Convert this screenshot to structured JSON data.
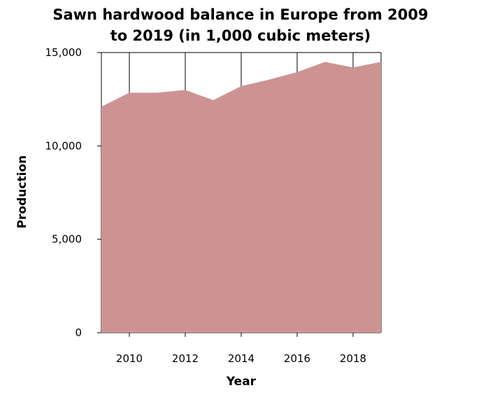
{
  "chart_data": {
    "type": "area",
    "title_lines": [
      "Sawn hardwood balance in Europe from 2009",
      "to 2019 (in 1,000 cubic meters)"
    ],
    "xlabel": "Year",
    "ylabel": "Production",
    "x": [
      2009,
      2010,
      2011,
      2012,
      2013,
      2014,
      2015,
      2016,
      2017,
      2018,
      2019
    ],
    "values": [
      12100,
      12850,
      12850,
      13000,
      12450,
      13200,
      13550,
      13950,
      14500,
      14200,
      14500
    ],
    "xlim": [
      2009,
      2019
    ],
    "ylim": [
      0,
      15000
    ],
    "x_ticks": [
      2010,
      2012,
      2014,
      2016,
      2018
    ],
    "x_tick_labels": [
      "2010",
      "2012",
      "2014",
      "2016",
      "2018"
    ],
    "y_ticks": [
      0,
      5000,
      10000,
      15000
    ],
    "y_tick_labels": [
      "0",
      "5,000",
      "10,000",
      "15,000"
    ],
    "grid": true,
    "legend": "none",
    "fill_color": "#cd9393",
    "grid_color": "#000000"
  }
}
